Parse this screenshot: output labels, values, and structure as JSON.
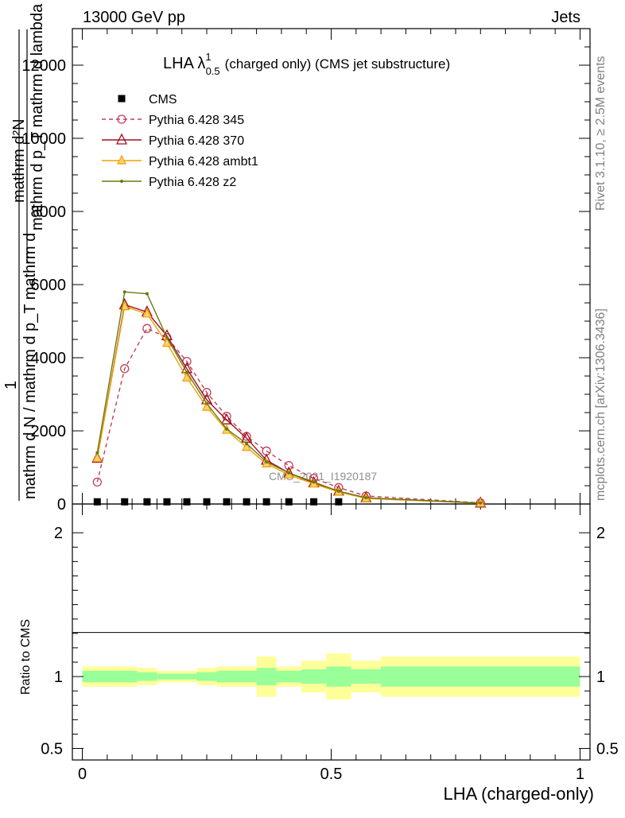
{
  "header": {
    "left": "13000 GeV pp",
    "right": "Jets"
  },
  "side_text": {
    "rivet": "Rivet 3.1.10, ≥ 2.5M events",
    "mcplots": "mcplots.cern.ch [arXiv:1306.3436]"
  },
  "plot_title": {
    "main": "LHA λ",
    "sup": "1",
    "sub": "0.5",
    "rest": "(charged only) (CMS jet substructure)"
  },
  "watermark": "CMS_2021_I1920187",
  "ylabel_main": {
    "numer": "mathrm d²N",
    "denom": "mathrm d p_T mathrm d lambda",
    "prefix_numer": "1",
    "prefix_denom": "mathrm d N / mathrm d p_T mathrm d"
  },
  "ratio_ylabel": "Ratio to CMS",
  "xlabel": "LHA (charged-only)",
  "chart_data": [
    {
      "type": "line",
      "panel": "main",
      "xlim": [
        -0.02,
        1.02
      ],
      "ylim": [
        0,
        13000
      ],
      "yticks": [
        0,
        2000,
        4000,
        6000,
        8000,
        10000,
        12000
      ],
      "ytick_labels": [
        "0",
        "2000",
        "4000",
        "6000",
        "8000",
        "10000",
        "12000"
      ],
      "legend_position": "top-left",
      "series": [
        {
          "name": "CMS",
          "color": "#000000",
          "marker": "square",
          "style": "none",
          "x": [
            0.03,
            0.085,
            0.13,
            0.17,
            0.21,
            0.25,
            0.29,
            0.33,
            0.37,
            0.415,
            0.465,
            0.515
          ],
          "y": [
            60,
            60,
            60,
            60,
            60,
            60,
            60,
            60,
            60,
            60,
            60,
            60
          ]
        },
        {
          "name": "Pythia 6.428 345",
          "color": "#c0405a",
          "marker": "open-circle",
          "style": "dashed",
          "x": [
            0.03,
            0.085,
            0.13,
            0.17,
            0.21,
            0.25,
            0.29,
            0.33,
            0.37,
            0.415,
            0.465,
            0.515,
            0.57,
            0.8
          ],
          "y": [
            600,
            3700,
            4800,
            4550,
            3900,
            3050,
            2400,
            1850,
            1450,
            1050,
            700,
            450,
            220,
            30
          ]
        },
        {
          "name": "Pythia 6.428 370",
          "color": "#a0101e",
          "marker": "open-triangle",
          "style": "solid",
          "x": [
            0.03,
            0.085,
            0.13,
            0.17,
            0.21,
            0.25,
            0.29,
            0.33,
            0.37,
            0.415,
            0.465,
            0.515,
            0.57,
            0.8
          ],
          "y": [
            1250,
            5450,
            5250,
            4600,
            3700,
            2850,
            2300,
            1800,
            1200,
            850,
            580,
            350,
            170,
            25
          ]
        },
        {
          "name": "Pythia 6.428 ambt1",
          "color": "#f0a000",
          "marker": "filled-triangle",
          "style": "solid",
          "x": [
            0.03,
            0.085,
            0.13,
            0.17,
            0.21,
            0.25,
            0.29,
            0.33,
            0.37,
            0.415,
            0.465,
            0.515,
            0.57,
            0.8
          ],
          "y": [
            1250,
            5400,
            5200,
            4400,
            3450,
            2650,
            2020,
            1550,
            1100,
            800,
            550,
            330,
            150,
            20
          ]
        },
        {
          "name": "Pythia 6.428 z2",
          "color": "#6a7a10",
          "marker": "dot",
          "style": "solid",
          "x": [
            0.03,
            0.085,
            0.13,
            0.17,
            0.21,
            0.25,
            0.29,
            0.33,
            0.37,
            0.415,
            0.465,
            0.515,
            0.57,
            0.8
          ],
          "y": [
            1400,
            5800,
            5750,
            4550,
            3600,
            2750,
            2050,
            1650,
            1150,
            850,
            600,
            350,
            170,
            25
          ]
        }
      ]
    },
    {
      "type": "area",
      "panel": "ratio",
      "xlim": [
        -0.02,
        1.02
      ],
      "ylim": [
        0.42,
        2.2
      ],
      "yticks": [
        0.5,
        1,
        2
      ],
      "ytick_labels": [
        "0.5",
        "1",
        "2"
      ],
      "xticks": [
        0,
        0.5,
        1
      ],
      "xtick_labels": [
        "0",
        "0.5",
        "1"
      ],
      "bin_edges": [
        0.0,
        0.06,
        0.11,
        0.15,
        0.19,
        0.23,
        0.27,
        0.31,
        0.35,
        0.39,
        0.44,
        0.49,
        0.54,
        0.6,
        1.0
      ],
      "band_outer_lo": [
        0.93,
        0.93,
        0.94,
        0.96,
        0.96,
        0.94,
        0.93,
        0.93,
        0.86,
        0.93,
        0.89,
        0.84,
        0.89,
        0.86
      ],
      "band_outer_hi": [
        1.07,
        1.07,
        1.06,
        1.04,
        1.04,
        1.06,
        1.07,
        1.07,
        1.14,
        1.07,
        1.11,
        1.16,
        1.11,
        1.14
      ],
      "band_inner_lo": [
        0.96,
        0.96,
        0.97,
        0.98,
        0.98,
        0.97,
        0.96,
        0.96,
        0.94,
        0.96,
        0.95,
        0.93,
        0.95,
        0.93
      ],
      "band_inner_hi": [
        1.04,
        1.04,
        1.03,
        1.02,
        1.02,
        1.03,
        1.04,
        1.04,
        1.06,
        1.04,
        1.05,
        1.07,
        1.05,
        1.07
      ],
      "colors": {
        "outer": "#ffff99",
        "inner": "#99ff99"
      }
    }
  ]
}
